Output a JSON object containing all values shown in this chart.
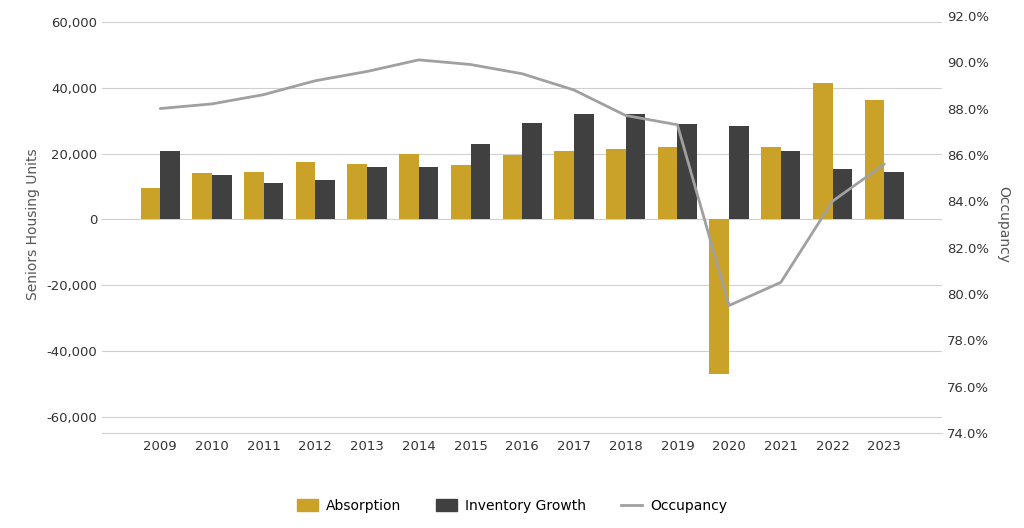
{
  "years": [
    2009,
    2010,
    2011,
    2012,
    2013,
    2014,
    2015,
    2016,
    2017,
    2018,
    2019,
    2020,
    2021,
    2022,
    2023
  ],
  "absorption": [
    9500,
    14000,
    14500,
    17500,
    17000,
    20000,
    16500,
    19500,
    21000,
    21500,
    22000,
    -47000,
    22000,
    41500,
    36500
  ],
  "inventory_growth": [
    21000,
    13500,
    11000,
    12000,
    16000,
    16000,
    23000,
    29500,
    32000,
    32000,
    29000,
    28500,
    21000,
    15500,
    14500
  ],
  "occupancy": [
    0.88,
    0.882,
    0.886,
    0.892,
    0.896,
    0.901,
    0.899,
    0.895,
    0.888,
    0.877,
    0.873,
    0.795,
    0.805,
    0.84,
    0.856
  ],
  "absorption_color": "#C9A227",
  "inventory_color": "#404040",
  "occupancy_color": "#A0A0A0",
  "ylim_left": [
    -65000,
    62000
  ],
  "ylim_right": [
    0.74,
    0.92
  ],
  "yticks_left": [
    -60000,
    -40000,
    -20000,
    0,
    20000,
    40000,
    60000
  ],
  "yticks_right": [
    0.74,
    0.76,
    0.78,
    0.8,
    0.82,
    0.84,
    0.86,
    0.88,
    0.9,
    0.92
  ],
  "ylabel_left": "Seniors Housing Units",
  "ylabel_right": "Occupancy",
  "background_color": "#FFFFFF",
  "grid_color": "#D0D0D0",
  "legend_labels": [
    "Absorption",
    "Inventory Growth",
    "Occupancy"
  ],
  "bar_width": 0.38
}
